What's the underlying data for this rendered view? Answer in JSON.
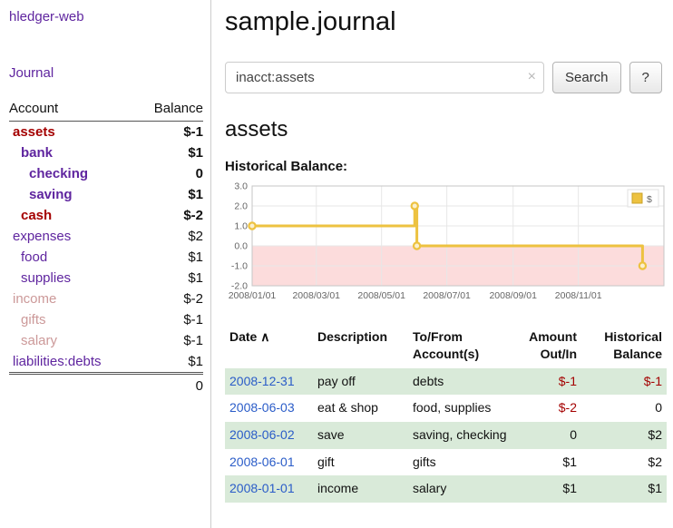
{
  "colors": {
    "purple": "#5f259f",
    "red": "#a40000",
    "pink": "#cc9999",
    "link_blue": "#2a5cc8",
    "row_green": "#d9ead9",
    "chart_gold": "#edc240",
    "chart_negative_fill": "#fcdcdc"
  },
  "app": {
    "title": "hledger-web"
  },
  "sidebar": {
    "journal_label": "Journal",
    "header_account": "Account",
    "header_balance": "Balance",
    "accounts": [
      {
        "name": "assets",
        "balance": "$-1",
        "indent": 1,
        "bold": true,
        "name_class": "red",
        "bal_class": "red"
      },
      {
        "name": "bank",
        "balance": "$1",
        "indent": 2,
        "bold": true,
        "name_class": "purple",
        "bal_class": "black"
      },
      {
        "name": "checking",
        "balance": "0",
        "indent": 3,
        "bold": true,
        "name_class": "purple",
        "bal_class": "black"
      },
      {
        "name": "saving",
        "balance": "$1",
        "indent": 3,
        "bold": true,
        "name_class": "purple",
        "bal_class": "black"
      },
      {
        "name": "cash",
        "balance": "$-2",
        "indent": 2,
        "bold": true,
        "name_class": "red",
        "bal_class": "red"
      },
      {
        "name": "expenses",
        "balance": "$2",
        "indent": 1,
        "bold": false,
        "name_class": "purple",
        "bal_class": "black"
      },
      {
        "name": "food",
        "balance": "$1",
        "indent": 2,
        "bold": false,
        "name_class": "purple",
        "bal_class": "black"
      },
      {
        "name": "supplies",
        "balance": "$1",
        "indent": 2,
        "bold": false,
        "name_class": "purple",
        "bal_class": "black"
      },
      {
        "name": "income",
        "balance": "$-2",
        "indent": 1,
        "bold": false,
        "name_class": "pink",
        "bal_class": "pink"
      },
      {
        "name": "gifts",
        "balance": "$-1",
        "indent": 2,
        "bold": false,
        "name_class": "pink",
        "bal_class": "pink"
      },
      {
        "name": "salary",
        "balance": "$-1",
        "indent": 2,
        "bold": false,
        "name_class": "pink",
        "bal_class": "pink"
      },
      {
        "name": "liabilities:debts",
        "balance": "$1",
        "indent": 1,
        "bold": false,
        "name_class": "purple",
        "bal_class": "black"
      }
    ],
    "total": "0"
  },
  "main": {
    "title": "sample.journal",
    "search": {
      "value": "inacct:assets",
      "clear_icon": "×",
      "button_label": "Search",
      "help_label": "?"
    },
    "account_heading": "assets",
    "chart_label": "Historical Balance:"
  },
  "chart_data": {
    "type": "line",
    "title": "Historical Balance",
    "legend_position": "top-right",
    "grid": true,
    "ylim": [
      -2.0,
      3.0
    ],
    "yticks": [
      3.0,
      2.0,
      1.0,
      0.0,
      -1.0,
      -2.0
    ],
    "xticks": [
      "2008/01/01",
      "2008/03/01",
      "2008/05/01",
      "2008/07/01",
      "2008/09/01",
      "2008/11/01"
    ],
    "x_domain": [
      "2008/01/01",
      "2009/01/20"
    ],
    "negative_region_fill": "#fcdcdc",
    "series": [
      {
        "name": "$",
        "color": "#edc240",
        "step": true,
        "points": [
          {
            "date": "2008/01/01",
            "value": 1
          },
          {
            "date": "2008/06/01",
            "value": 2
          },
          {
            "date": "2008/06/03",
            "value": 0
          },
          {
            "date": "2008/12/31",
            "value": -1
          }
        ]
      }
    ]
  },
  "register": {
    "columns": [
      {
        "key": "date",
        "label": "Date",
        "align": "left",
        "sortable": true,
        "sort_icon": "∧"
      },
      {
        "key": "description",
        "label": "Description",
        "align": "left",
        "sortable": false
      },
      {
        "key": "accounts",
        "label": "To/From Account(s)",
        "align": "left",
        "sortable": false
      },
      {
        "key": "amount",
        "label": "Amount Out/In",
        "align": "right",
        "sortable": false
      },
      {
        "key": "balance",
        "label": "Historical Balance",
        "align": "right",
        "sortable": false
      }
    ],
    "rows": [
      {
        "date": "2008-12-31",
        "description": "pay off",
        "accounts": "debts",
        "amount": "$-1",
        "balance": "$-1",
        "amount_class": "neg",
        "balance_class": "neg",
        "highlight": true
      },
      {
        "date": "2008-06-03",
        "description": "eat & shop",
        "accounts": "food, supplies",
        "amount": "$-2",
        "balance": "0",
        "amount_class": "neg",
        "balance_class": "",
        "highlight": false
      },
      {
        "date": "2008-06-02",
        "description": "save",
        "accounts": "saving, checking",
        "amount": "0",
        "balance": "$2",
        "amount_class": "",
        "balance_class": "",
        "highlight": true
      },
      {
        "date": "2008-06-01",
        "description": "gift",
        "accounts": "gifts",
        "amount": "$1",
        "balance": "$2",
        "amount_class": "",
        "balance_class": "",
        "highlight": false
      },
      {
        "date": "2008-01-01",
        "description": "income",
        "accounts": "salary",
        "amount": "$1",
        "balance": "$1",
        "amount_class": "",
        "balance_class": "",
        "highlight": true
      }
    ]
  }
}
